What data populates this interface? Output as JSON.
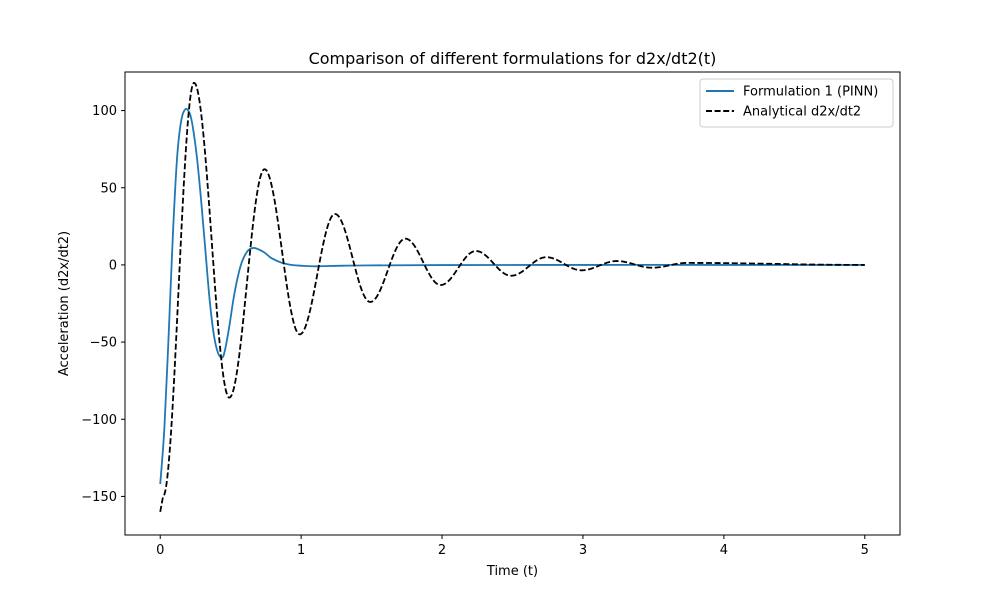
{
  "chart_data": {
    "type": "line",
    "title": "Comparison of different formulations for d2x/dt2(t)",
    "xlabel": "Time (t)",
    "ylabel": "Acceleration (d2x/dt2)",
    "xlim": [
      -0.25,
      5.25
    ],
    "ylim": [
      -175,
      125
    ],
    "xticks": [
      0,
      1,
      2,
      3,
      4,
      5
    ],
    "xtick_labels": [
      "0",
      "1",
      "2",
      "3",
      "4",
      "5"
    ],
    "yticks": [
      -150,
      -100,
      -50,
      0,
      50,
      100
    ],
    "ytick_labels": [
      "−150",
      "−100",
      "−50",
      "0",
      "50",
      "100"
    ],
    "grid": false,
    "legend_position": "top-right",
    "series": [
      {
        "name": "Formulation 1 (PINN)",
        "color": "#1f77b4",
        "style": "solid",
        "x": [
          0,
          0.03,
          0.06,
          0.09,
          0.12,
          0.15,
          0.18,
          0.21,
          0.23,
          0.26,
          0.29,
          0.32,
          0.35,
          0.38,
          0.41,
          0.44,
          0.46,
          0.49,
          0.52,
          0.55,
          0.58,
          0.62,
          0.66,
          0.7,
          0.74,
          0.78,
          0.82,
          0.86,
          0.9,
          0.95,
          1.0,
          1.05,
          1.1,
          1.15,
          1.2,
          1.3,
          1.5,
          2.0,
          3.0,
          4.0,
          5.0
        ],
        "y": [
          -142,
          -105,
          -45,
          20,
          70,
          94,
          101,
          98,
          90,
          70,
          42,
          10,
          -22,
          -45,
          -57,
          -60,
          -55,
          -40,
          -22,
          -8,
          2,
          9,
          11,
          10,
          8,
          5,
          3,
          1.5,
          0.5,
          -0.2,
          -0.5,
          -0.8,
          -0.9,
          -0.8,
          -0.7,
          -0.5,
          -0.3,
          -0.1,
          0,
          0,
          0
        ]
      },
      {
        "name": "Analytical d2x/dt2",
        "color": "#000000",
        "style": "dashed",
        "omega": 12.566,
        "decay": 1.3,
        "t_end": 5,
        "x_samples": [
          0,
          0.02,
          0.24,
          0.49,
          0.74,
          0.99,
          1.24,
          1.49,
          1.74,
          1.99,
          2.24,
          2.49,
          2.74,
          2.99,
          3.24,
          3.49,
          3.74,
          5.0
        ],
        "y_samples": [
          -160,
          -150,
          118,
          -86,
          62,
          -45,
          33,
          -24,
          17,
          -13,
          9,
          -7,
          5,
          -3.5,
          2.5,
          -1.8,
          1.3,
          0
        ]
      }
    ]
  }
}
